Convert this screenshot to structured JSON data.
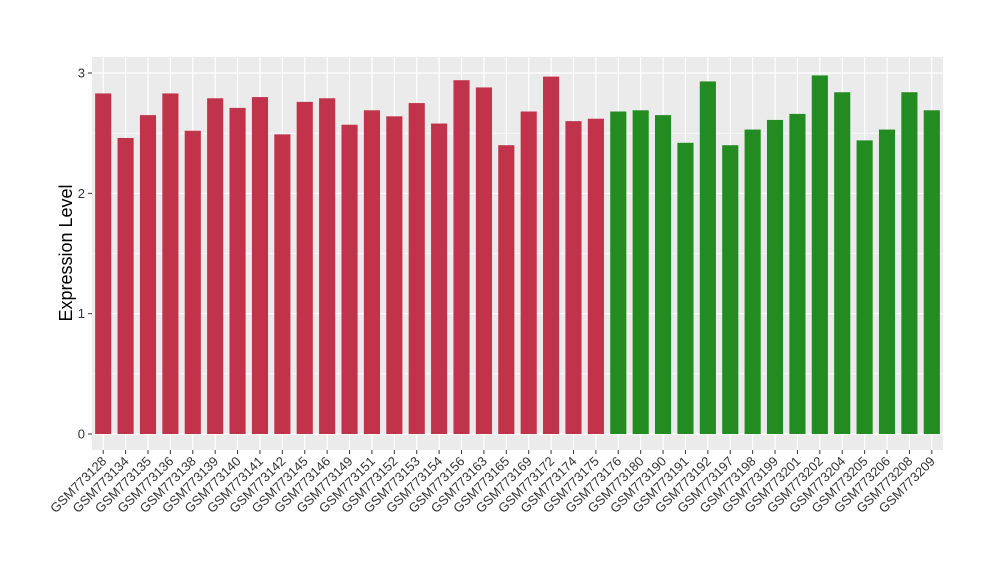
{
  "chart_data": {
    "type": "bar",
    "title": "",
    "xlabel": "",
    "ylabel": "Expression Level",
    "ylim": [
      0,
      3.1
    ],
    "yticks": [
      0,
      1,
      2,
      3
    ],
    "grid": true,
    "legend": "none",
    "colors": {
      "group1": "#C0334A",
      "group2": "#228B22",
      "panel": "#EBEBEB",
      "grid": "#FFFFFF"
    },
    "categories": [
      "GSM773128",
      "GSM773134",
      "GSM773135",
      "GSM773136",
      "GSM773138",
      "GSM773139",
      "GSM773140",
      "GSM773141",
      "GSM773142",
      "GSM773145",
      "GSM773146",
      "GSM773149",
      "GSM773151",
      "GSM773152",
      "GSM773153",
      "GSM773154",
      "GSM773156",
      "GSM773163",
      "GSM773165",
      "GSM773169",
      "GSM773172",
      "GSM773174",
      "GSM773175",
      "GSM773176",
      "GSM773180",
      "GSM773190",
      "GSM773191",
      "GSM773192",
      "GSM773197",
      "GSM773198",
      "GSM773199",
      "GSM773201",
      "GSM773202",
      "GSM773204",
      "GSM773205",
      "GSM773206",
      "GSM773208",
      "GSM773209"
    ],
    "values": [
      2.83,
      2.46,
      2.65,
      2.83,
      2.52,
      2.79,
      2.71,
      2.8,
      2.49,
      2.76,
      2.79,
      2.57,
      2.69,
      2.64,
      2.75,
      2.58,
      2.94,
      2.88,
      2.4,
      2.68,
      2.97,
      2.6,
      2.62,
      2.68,
      2.69,
      2.65,
      2.42,
      2.93,
      2.4,
      2.53,
      2.61,
      2.66,
      2.98,
      2.84,
      2.44,
      2.53,
      2.84,
      2.69
    ],
    "groups": [
      1,
      1,
      1,
      1,
      1,
      1,
      1,
      1,
      1,
      1,
      1,
      1,
      1,
      1,
      1,
      1,
      1,
      1,
      1,
      1,
      1,
      1,
      1,
      2,
      2,
      2,
      2,
      2,
      2,
      2,
      2,
      2,
      2,
      2,
      2,
      2,
      2,
      2
    ]
  }
}
